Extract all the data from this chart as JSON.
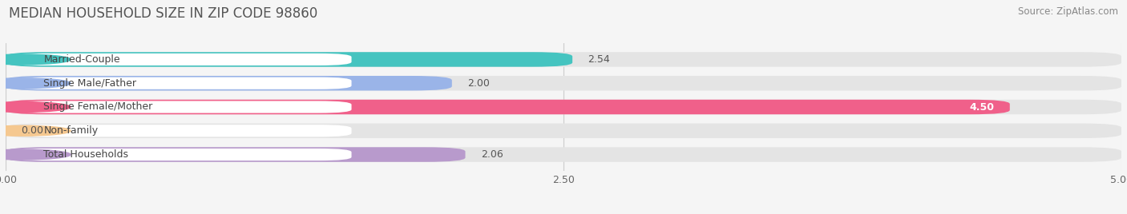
{
  "title": "MEDIAN HOUSEHOLD SIZE IN ZIP CODE 98860",
  "source": "Source: ZipAtlas.com",
  "categories": [
    "Married-Couple",
    "Single Male/Father",
    "Single Female/Mother",
    "Non-family",
    "Total Households"
  ],
  "values": [
    2.54,
    2.0,
    4.5,
    0.0,
    2.06
  ],
  "bar_colors": [
    "#45c4c0",
    "#9ab4e8",
    "#f0608a",
    "#f5c890",
    "#b89acc"
  ],
  "label_bg": "#ffffff",
  "xlim": [
    0,
    5.0
  ],
  "xtick_labels": [
    "0.00",
    "2.50",
    "5.00"
  ],
  "xtick_vals": [
    0.0,
    2.5,
    5.0
  ],
  "background_color": "#f5f5f5",
  "bar_bg_color": "#e4e4e4",
  "title_fontsize": 12,
  "source_fontsize": 8.5,
  "label_fontsize": 9,
  "value_fontsize": 9
}
